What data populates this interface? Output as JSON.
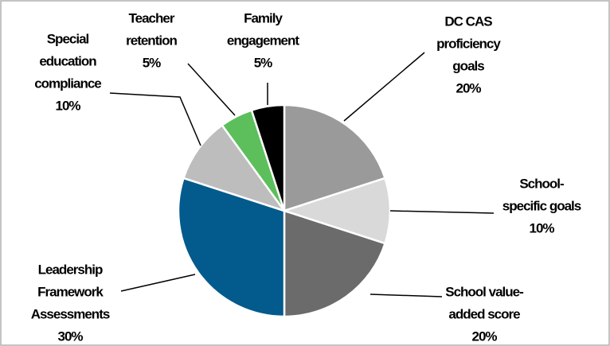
{
  "chart_data": {
    "type": "pie",
    "categories": [
      [
        "DC CAS",
        "proficiency",
        "goals"
      ],
      [
        "School-",
        "specific goals"
      ],
      [
        "School value-",
        "added score"
      ],
      [
        "Leadership",
        "Framework",
        "Assessments"
      ],
      [
        "Special",
        "education",
        "compliance"
      ],
      [
        "Teacher",
        "retention"
      ],
      [
        "Family",
        "engagement"
      ]
    ],
    "values": [
      20,
      10,
      20,
      30,
      10,
      5,
      5
    ],
    "value_labels": [
      "20%",
      "10%",
      "20%",
      "30%",
      "10%",
      "5%",
      "5%"
    ],
    "colors": [
      "#9a9a9a",
      "#d9d9d9",
      "#6b6b6b",
      "#035a8c",
      "#bdbdbd",
      "#5cbf5c",
      "#000000"
    ]
  }
}
